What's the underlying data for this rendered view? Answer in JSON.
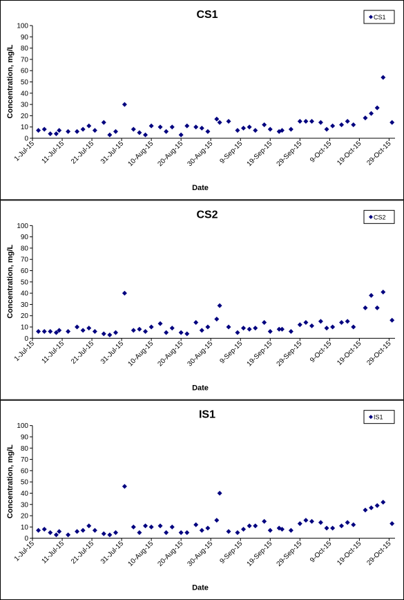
{
  "chart_data": [
    {
      "type": "scatter",
      "title": "CS1",
      "xlabel": "Date",
      "ylabel": "Concentration, mg/L",
      "x": [
        "2015-07-03",
        "2015-07-05",
        "2015-07-07",
        "2015-07-09",
        "2015-07-10",
        "2015-07-13",
        "2015-07-16",
        "2015-07-18",
        "2015-07-20",
        "2015-07-22",
        "2015-07-25",
        "2015-07-27",
        "2015-07-29",
        "2015-08-01",
        "2015-08-04",
        "2015-08-06",
        "2015-08-08",
        "2015-08-10",
        "2015-08-13",
        "2015-08-15",
        "2015-08-17",
        "2015-08-20",
        "2015-08-22",
        "2015-08-25",
        "2015-08-27",
        "2015-08-29",
        "2015-09-01",
        "2015-09-02",
        "2015-09-05",
        "2015-09-08",
        "2015-09-10",
        "2015-09-12",
        "2015-09-14",
        "2015-09-17",
        "2015-09-19",
        "2015-09-22",
        "2015-09-23",
        "2015-09-26",
        "2015-09-29",
        "2015-10-01",
        "2015-10-03",
        "2015-10-06",
        "2015-10-08",
        "2015-10-10",
        "2015-10-13",
        "2015-10-15",
        "2015-10-17",
        "2015-10-21",
        "2015-10-23",
        "2015-10-25",
        "2015-10-27",
        "2015-10-30"
      ],
      "series": [
        {
          "name": "CS1",
          "color": "#00007f",
          "values": [
            7,
            8,
            4,
            4,
            7,
            6,
            6,
            8,
            11,
            7,
            14,
            3,
            6,
            30,
            8,
            5,
            3,
            11,
            10,
            6,
            10,
            3,
            11,
            10,
            9,
            6,
            17,
            14,
            15,
            7,
            9,
            10,
            7,
            12,
            8,
            6,
            7,
            8,
            15,
            15,
            15,
            14,
            8,
            11,
            12,
            15,
            12,
            18,
            22,
            27,
            54,
            14
          ]
        }
      ],
      "xlim": [
        "2015-07-01",
        "2015-10-31"
      ],
      "xticks": [
        {
          "value": "2015-07-01",
          "label": "1-Jul-15"
        },
        {
          "value": "2015-07-11",
          "label": "11-Jul-15"
        },
        {
          "value": "2015-07-21",
          "label": "21-Jul-15"
        },
        {
          "value": "2015-07-31",
          "label": "31-Jul-15"
        },
        {
          "value": "2015-08-10",
          "label": "10-Aug-15"
        },
        {
          "value": "2015-08-20",
          "label": "20-Aug-15"
        },
        {
          "value": "2015-08-30",
          "label": "30-Aug-15"
        },
        {
          "value": "2015-09-09",
          "label": "9-Sep-15"
        },
        {
          "value": "2015-09-19",
          "label": "19-Sep-15"
        },
        {
          "value": "2015-09-29",
          "label": "29-Sep-15"
        },
        {
          "value": "2015-10-09",
          "label": "9-Oct-15"
        },
        {
          "value": "2015-10-19",
          "label": "19-Oct-15"
        },
        {
          "value": "2015-10-29",
          "label": "29-Oct-15"
        }
      ],
      "ylim": [
        0,
        100
      ],
      "yticks": [
        0,
        10,
        20,
        30,
        40,
        50,
        60,
        70,
        80,
        90,
        100
      ],
      "legend": "top-right"
    },
    {
      "type": "scatter",
      "title": "CS2",
      "xlabel": "Date",
      "ylabel": "Concentration, mg/L",
      "x": [
        "2015-07-03",
        "2015-07-05",
        "2015-07-07",
        "2015-07-09",
        "2015-07-10",
        "2015-07-13",
        "2015-07-16",
        "2015-07-18",
        "2015-07-20",
        "2015-07-22",
        "2015-07-25",
        "2015-07-27",
        "2015-07-29",
        "2015-08-01",
        "2015-08-04",
        "2015-08-06",
        "2015-08-08",
        "2015-08-10",
        "2015-08-13",
        "2015-08-15",
        "2015-08-17",
        "2015-08-20",
        "2015-08-22",
        "2015-08-25",
        "2015-08-27",
        "2015-08-29",
        "2015-09-01",
        "2015-09-02",
        "2015-09-05",
        "2015-09-08",
        "2015-09-10",
        "2015-09-12",
        "2015-09-14",
        "2015-09-17",
        "2015-09-19",
        "2015-09-22",
        "2015-09-23",
        "2015-09-26",
        "2015-09-29",
        "2015-10-01",
        "2015-10-03",
        "2015-10-06",
        "2015-10-08",
        "2015-10-10",
        "2015-10-13",
        "2015-10-15",
        "2015-10-17",
        "2015-10-21",
        "2015-10-23",
        "2015-10-25",
        "2015-10-27",
        "2015-10-30"
      ],
      "series": [
        {
          "name": "CS2",
          "color": "#00007f",
          "values": [
            6,
            6,
            6,
            5,
            7,
            6,
            10,
            7,
            9,
            6,
            4,
            3,
            5,
            40,
            7,
            8,
            6,
            10,
            13,
            5,
            9,
            5,
            4,
            14,
            7,
            10,
            17,
            29,
            10,
            5,
            9,
            8,
            9,
            14,
            6,
            8,
            8,
            6,
            12,
            14,
            11,
            15,
            9,
            10,
            14,
            15,
            10,
            27,
            38,
            27,
            41,
            16
          ]
        }
      ],
      "xlim": [
        "2015-07-01",
        "2015-10-31"
      ],
      "xticks": [
        {
          "value": "2015-07-01",
          "label": "1-Jul-15"
        },
        {
          "value": "2015-07-11",
          "label": "11-Jul-15"
        },
        {
          "value": "2015-07-21",
          "label": "21-Jul-15"
        },
        {
          "value": "2015-07-31",
          "label": "31-Jul-15"
        },
        {
          "value": "2015-08-10",
          "label": "10-Aug-15"
        },
        {
          "value": "2015-08-20",
          "label": "20-Aug-15"
        },
        {
          "value": "2015-08-30",
          "label": "30-Aug-15"
        },
        {
          "value": "2015-09-09",
          "label": "9-Sep-15"
        },
        {
          "value": "2015-09-19",
          "label": "19-Sep-15"
        },
        {
          "value": "2015-09-29",
          "label": "29-Sep-15"
        },
        {
          "value": "2015-10-09",
          "label": "9-Oct-15"
        },
        {
          "value": "2015-10-19",
          "label": "19-Oct-15"
        },
        {
          "value": "2015-10-29",
          "label": "29-Oct-15"
        }
      ],
      "ylim": [
        0,
        100
      ],
      "yticks": [
        0,
        10,
        20,
        30,
        40,
        50,
        60,
        70,
        80,
        90,
        100
      ],
      "legend": "top-right"
    },
    {
      "type": "scatter",
      "title": "IS1",
      "xlabel": "Date",
      "ylabel": "Concentration, mg/L",
      "x": [
        "2015-07-03",
        "2015-07-05",
        "2015-07-07",
        "2015-07-09",
        "2015-07-10",
        "2015-07-13",
        "2015-07-16",
        "2015-07-18",
        "2015-07-20",
        "2015-07-22",
        "2015-07-25",
        "2015-07-27",
        "2015-07-29",
        "2015-08-01",
        "2015-08-04",
        "2015-08-06",
        "2015-08-08",
        "2015-08-10",
        "2015-08-13",
        "2015-08-15",
        "2015-08-17",
        "2015-08-20",
        "2015-08-22",
        "2015-08-25",
        "2015-08-27",
        "2015-08-29",
        "2015-09-01",
        "2015-09-02",
        "2015-09-05",
        "2015-09-08",
        "2015-09-10",
        "2015-09-12",
        "2015-09-14",
        "2015-09-17",
        "2015-09-19",
        "2015-09-22",
        "2015-09-23",
        "2015-09-26",
        "2015-09-29",
        "2015-10-01",
        "2015-10-03",
        "2015-10-06",
        "2015-10-08",
        "2015-10-10",
        "2015-10-13",
        "2015-10-15",
        "2015-10-17",
        "2015-10-21",
        "2015-10-23",
        "2015-10-25",
        "2015-10-27",
        "2015-10-30"
      ],
      "series": [
        {
          "name": "IS1",
          "color": "#00007f",
          "values": [
            7,
            8,
            5,
            3,
            6,
            3,
            6,
            7,
            11,
            7,
            4,
            3,
            5,
            46,
            10,
            5,
            11,
            10,
            11,
            5,
            10,
            5,
            5,
            12,
            7,
            9,
            16,
            40,
            6,
            5,
            8,
            11,
            11,
            15,
            7,
            9,
            8,
            7,
            13,
            16,
            15,
            14,
            9,
            9,
            11,
            14,
            12,
            25,
            27,
            29,
            32,
            13
          ]
        }
      ],
      "xlim": [
        "2015-07-01",
        "2015-10-31"
      ],
      "xticks": [
        {
          "value": "2015-07-01",
          "label": "1-Jul-15"
        },
        {
          "value": "2015-07-11",
          "label": "11-Jul-15"
        },
        {
          "value": "2015-07-21",
          "label": "21-Jul-15"
        },
        {
          "value": "2015-07-31",
          "label": "31-Jul-15"
        },
        {
          "value": "2015-08-10",
          "label": "10-Aug-15"
        },
        {
          "value": "2015-08-20",
          "label": "20-Aug-15"
        },
        {
          "value": "2015-08-30",
          "label": "30-Aug-15"
        },
        {
          "value": "2015-09-09",
          "label": "9-Sep-15"
        },
        {
          "value": "2015-09-19",
          "label": "19-Sep-15"
        },
        {
          "value": "2015-09-29",
          "label": "29-Sep-15"
        },
        {
          "value": "2015-10-09",
          "label": "9-Oct-15"
        },
        {
          "value": "2015-10-19",
          "label": "19-Oct-15"
        },
        {
          "value": "2015-10-29",
          "label": "29-Oct-15"
        }
      ],
      "ylim": [
        0,
        100
      ],
      "yticks": [
        0,
        10,
        20,
        30,
        40,
        50,
        60,
        70,
        80,
        90,
        100
      ],
      "legend": "top-right"
    }
  ]
}
